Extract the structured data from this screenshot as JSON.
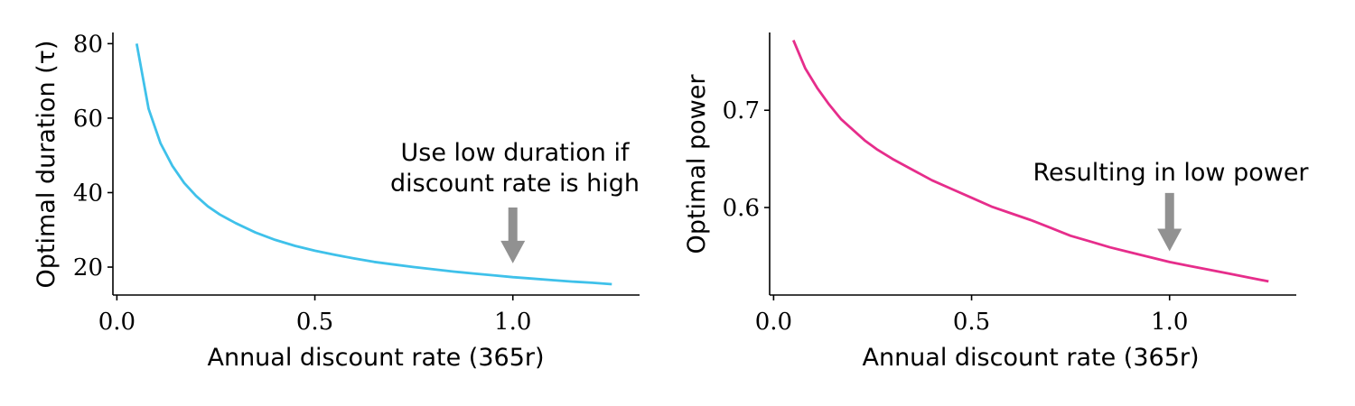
{
  "chart_data": [
    {
      "type": "line",
      "xlabel": "Annual discount rate (365r)",
      "ylabel": "Optimal duration (τ)",
      "xlim": [
        -0.01,
        1.32
      ],
      "ylim": [
        12.5,
        83
      ],
      "xticks": [
        0.0,
        0.5,
        1.0
      ],
      "xtick_labels": [
        "0.0",
        "0.5",
        "1.0"
      ],
      "yticks": [
        20,
        40,
        60,
        80
      ],
      "ytick_labels": [
        "20",
        "40",
        "60",
        "80"
      ],
      "grid": false,
      "color": "#3fc1ea",
      "series": [
        {
          "x": [
            0.05,
            0.08,
            0.11,
            0.14,
            0.17,
            0.2,
            0.23,
            0.26,
            0.3,
            0.35,
            0.4,
            0.45,
            0.5,
            0.55,
            0.6,
            0.65,
            0.7,
            0.75,
            0.8,
            0.85,
            0.9,
            0.95,
            1.0,
            1.05,
            1.1,
            1.15,
            1.2,
            1.25
          ],
          "y": [
            80,
            62.5,
            53.3,
            47.2,
            42.6,
            39.1,
            36.3,
            34.1,
            31.8,
            29.3,
            27.3,
            25.7,
            24.4,
            23.3,
            22.3,
            21.4,
            20.7,
            20.0,
            19.4,
            18.8,
            18.3,
            17.8,
            17.3,
            16.9,
            16.5,
            16.1,
            15.8,
            15.4
          ]
        }
      ],
      "annotation": {
        "lines": [
          "Use low duration if",
          "discount rate is high"
        ],
        "arrow_x": 1.0,
        "arrow_from_y": 36,
        "arrow_to_y": 21,
        "arrow_color": "#919191"
      }
    },
    {
      "type": "line",
      "xlabel": "Annual discount rate (365r)",
      "ylabel": "Optimal power",
      "xlim": [
        -0.01,
        1.32
      ],
      "ylim": [
        0.51,
        0.78
      ],
      "xticks": [
        0.0,
        0.5,
        1.0
      ],
      "xtick_labels": [
        "0.0",
        "0.5",
        "1.0"
      ],
      "yticks": [
        0.6,
        0.7
      ],
      "ytick_labels": [
        "0.6",
        "0.7"
      ],
      "grid": false,
      "color": "#e62d8b",
      "series": [
        {
          "x": [
            0.05,
            0.08,
            0.11,
            0.14,
            0.17,
            0.2,
            0.23,
            0.26,
            0.3,
            0.35,
            0.4,
            0.45,
            0.5,
            0.55,
            0.6,
            0.65,
            0.7,
            0.75,
            0.8,
            0.85,
            0.9,
            0.95,
            1.0,
            1.05,
            1.1,
            1.15,
            1.2,
            1.25
          ],
          "y": [
            0.772,
            0.743,
            0.723,
            0.706,
            0.691,
            0.68,
            0.669,
            0.66,
            0.65,
            0.639,
            0.628,
            0.619,
            0.61,
            0.601,
            0.594,
            0.587,
            0.579,
            0.571,
            0.565,
            0.559,
            0.554,
            0.549,
            0.544,
            0.54,
            0.536,
            0.532,
            0.528,
            0.524
          ]
        }
      ],
      "annotation": {
        "lines": [
          "Resulting in low power"
        ],
        "arrow_x": 1.0,
        "arrow_from_y": 0.615,
        "arrow_to_y": 0.555,
        "arrow_color": "#919191"
      }
    }
  ]
}
